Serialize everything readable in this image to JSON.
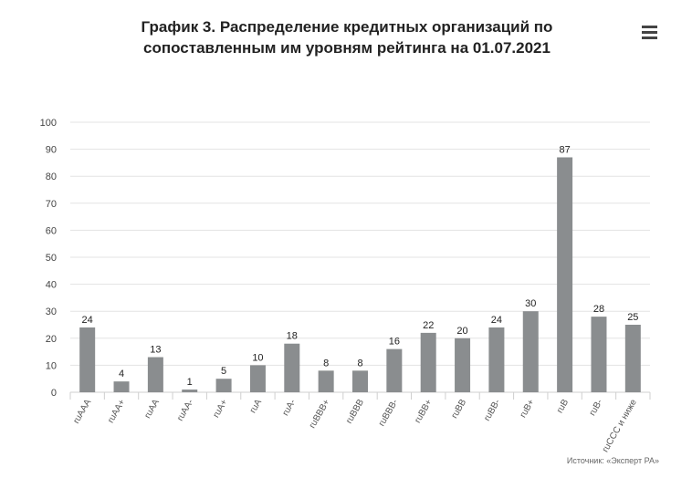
{
  "title_lines": [
    "График 3. Распределение кредитных организаций по",
    "сопоставленным им уровням рейтинга на 01.07.2021"
  ],
  "menu": {
    "icon": "hamburger-menu-icon"
  },
  "source": "Источник: «Эксперт РА»",
  "chart_data": {
    "type": "bar",
    "title": "График 3. Распределение кредитных организаций по сопоставленным им уровням рейтинга на 01.07.2021",
    "xlabel": "",
    "ylabel": "",
    "ylim": [
      0,
      100
    ],
    "yticks": [
      0,
      10,
      20,
      30,
      40,
      50,
      60,
      70,
      80,
      90,
      100
    ],
    "grid": true,
    "categories": [
      "ruAAA",
      "ruAA+",
      "ruAA",
      "ruAA-",
      "ruA+",
      "ruA",
      "ruA-",
      "ruBBB+",
      "ruBBB",
      "ruBBB-",
      "ruBB+",
      "ruBB",
      "ruBB-",
      "ruB+",
      "ruB",
      "ruB-",
      "ruCCC и ниже"
    ],
    "values": [
      24,
      4,
      13,
      1,
      5,
      10,
      18,
      8,
      8,
      16,
      22,
      20,
      24,
      30,
      87,
      28,
      25
    ],
    "bar_color": "#8a8d8f"
  }
}
